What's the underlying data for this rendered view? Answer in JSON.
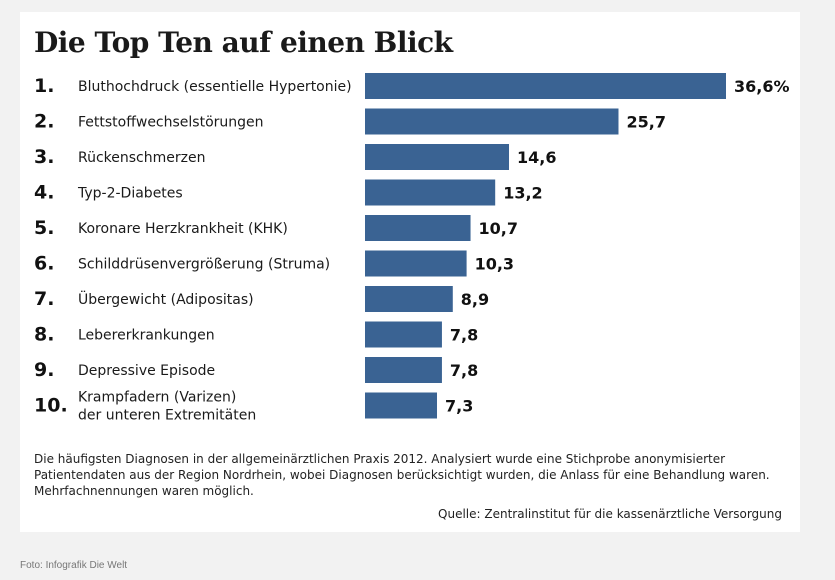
{
  "title": "Die Top Ten auf einen Blick",
  "note": "Die häufigsten Diagnosen in der allgemeinärztlichen Praxis 2012. Analysiert wurde eine Stichprobe anonymisierter Patientendaten aus der Region Nordrhein, wobei Diagnosen berücksichtigt wurden, die Anlass für eine Behandlung waren. Mehrfachnennungen waren möglich.",
  "source": "Quelle: Zentralinstitut für die kassenärztliche Versorgung",
  "credit": "Foto: Infografik Die Welt",
  "colors": {
    "bar": "#3a6393",
    "card": "#ffffff",
    "page": "#f2f2f2"
  },
  "chart_data": {
    "type": "bar",
    "orientation": "horizontal",
    "title": "Die Top Ten auf einen Blick",
    "unit": "%",
    "categories": [
      {
        "rank": "1.",
        "label": [
          "Bluthochdruck (essentielle Hypertonie)"
        ],
        "value": 36.6,
        "value_label": "36,6%"
      },
      {
        "rank": "2.",
        "label": [
          "Fettstoffwechselstörungen"
        ],
        "value": 25.7,
        "value_label": "25,7"
      },
      {
        "rank": "3.",
        "label": [
          "Rückenschmerzen"
        ],
        "value": 14.6,
        "value_label": "14,6"
      },
      {
        "rank": "4.",
        "label": [
          "Typ-2-Diabetes"
        ],
        "value": 13.2,
        "value_label": "13,2"
      },
      {
        "rank": "5.",
        "label": [
          "Koronare Herzkrankheit (KHK)"
        ],
        "value": 10.7,
        "value_label": "10,7"
      },
      {
        "rank": "6.",
        "label": [
          "Schilddrüsenvergrößerung (Struma)"
        ],
        "value": 10.3,
        "value_label": "10,3"
      },
      {
        "rank": "7.",
        "label": [
          "Übergewicht (Adipositas)"
        ],
        "value": 8.9,
        "value_label": "8,9"
      },
      {
        "rank": "8.",
        "label": [
          "Lebererkrankungen"
        ],
        "value": 7.8,
        "value_label": "7,8"
      },
      {
        "rank": "9.",
        "label": [
          "Depressive Episode"
        ],
        "value": 7.8,
        "value_label": "7,8"
      },
      {
        "rank": "10.",
        "label": [
          "Krampfadern (Varizen)",
          "der unteren Extremitäten"
        ],
        "value": 7.3,
        "value_label": "7,3"
      }
    ]
  }
}
